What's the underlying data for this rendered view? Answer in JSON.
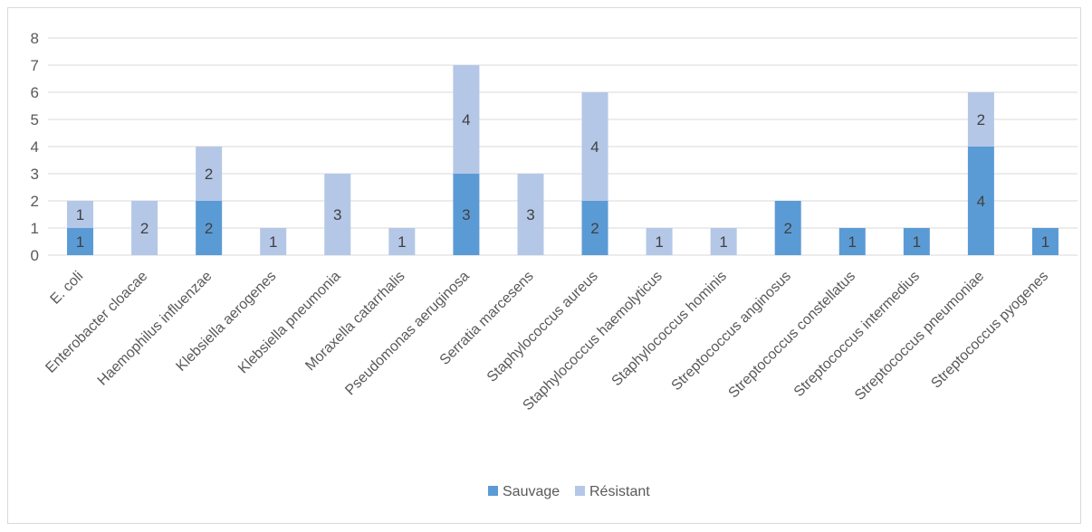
{
  "chart_data": {
    "type": "bar",
    "stacked": true,
    "categories": [
      "E. coli",
      "Enterobacter cloacae",
      "Haemophilus influenzae",
      "Klebsiella aerogenes",
      "Klebsiella pneumonia",
      "Moraxella catarrhalis",
      "Pseudomonas aeruginosa",
      "Serratia marcesens",
      "Staphylococcus aureus",
      "Staphylococcus haemolyticus",
      "Staphylococcus hominis",
      "Streptococcus anginosus",
      "Streptococcus constellatus",
      "Streptococcus intermedius",
      "Streptococcus pneumoniae",
      "Streptococcus pyogenes"
    ],
    "series": [
      {
        "name": "Sauvage",
        "color": "#5b9bd5",
        "values": [
          1,
          0,
          2,
          0,
          0,
          0,
          3,
          0,
          2,
          0,
          0,
          2,
          1,
          1,
          4,
          1
        ]
      },
      {
        "name": "Résistant",
        "color": "#b4c7e7",
        "values": [
          1,
          2,
          2,
          1,
          3,
          1,
          4,
          3,
          4,
          1,
          1,
          0,
          0,
          0,
          2,
          0
        ]
      }
    ],
    "ylim": [
      0,
      8
    ],
    "yticks": [
      0,
      1,
      2,
      3,
      4,
      5,
      6,
      7,
      8
    ],
    "grid": true,
    "legend": "bottom",
    "data_labels": true,
    "title": "",
    "xlabel": "",
    "ylabel": ""
  }
}
